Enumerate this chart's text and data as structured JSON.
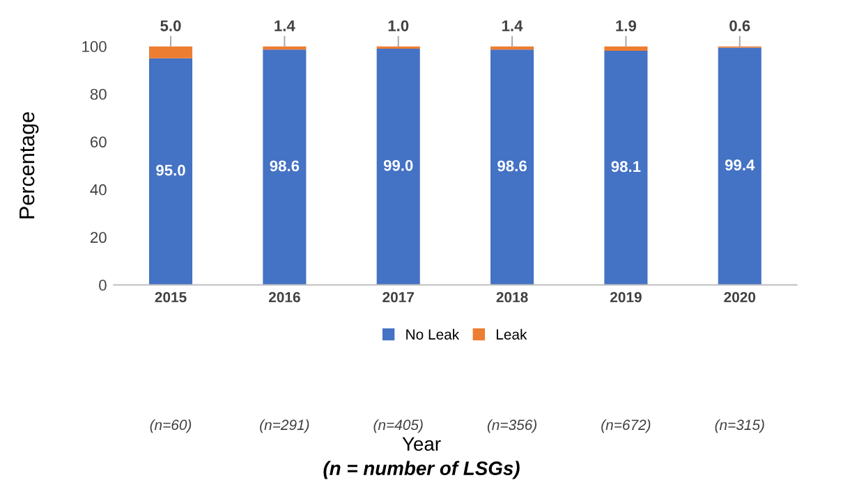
{
  "chart_data": {
    "type": "bar",
    "stacked": true,
    "ylabel": "Percentage",
    "categories": [
      "2015",
      "2016",
      "2017",
      "2018",
      "2019",
      "2020"
    ],
    "series": [
      {
        "name": "No Leak",
        "color": "#4472c4",
        "values": [
          95.0,
          98.6,
          99.0,
          98.6,
          98.1,
          99.4
        ],
        "value_labels": [
          "95.0",
          "98.6",
          "99.0",
          "98.6",
          "98.1",
          "99.4"
        ]
      },
      {
        "name": "Leak",
        "color": "#ed7d31",
        "values": [
          5.0,
          1.4,
          1.0,
          1.4,
          1.9,
          0.6
        ],
        "value_labels": [
          "5.0",
          "1.4",
          "1.0",
          "1.4",
          "1.9",
          "0.6"
        ]
      }
    ],
    "ylim": [
      0,
      100
    ],
    "yticks": [
      0,
      20,
      40,
      60,
      80,
      100
    ],
    "grid": false,
    "legend": "bottom",
    "annotations": [
      "(n=60)",
      "(n=291)",
      "(n=405)",
      "(n=356)",
      "(n=672)",
      "(n=315)",
      "Year",
      "(n = number of LSGs)"
    ]
  }
}
